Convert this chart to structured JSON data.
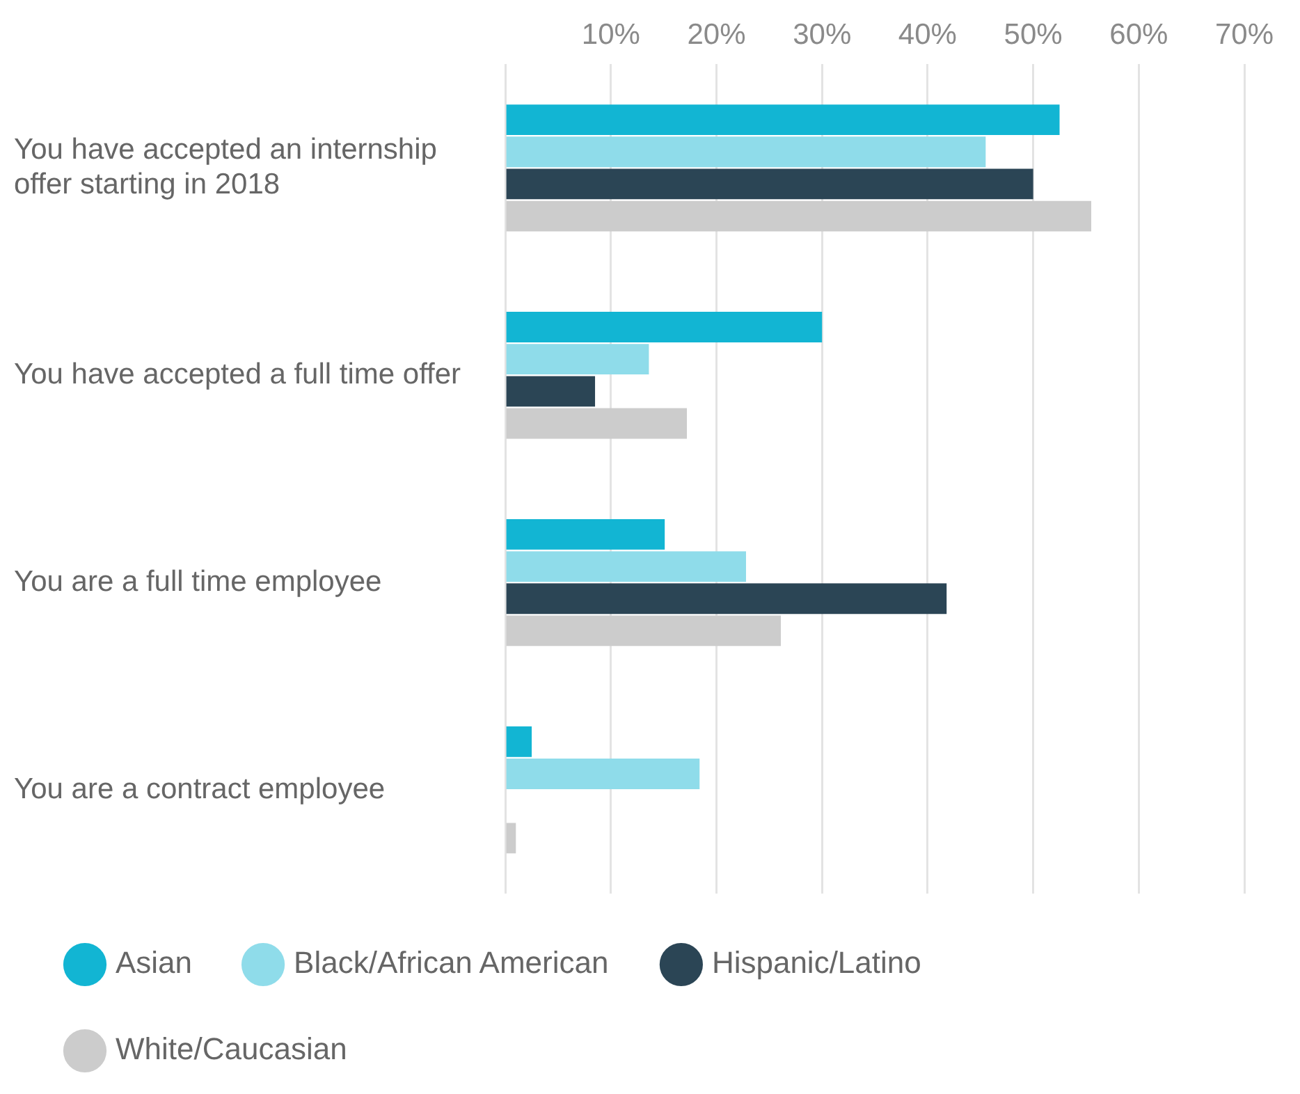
{
  "chart_data": {
    "type": "bar",
    "orientation": "horizontal",
    "categories": [
      "You have accepted an internship offer starting in 2018",
      "You have accepted a full time offer",
      "You are a full time employee",
      "You are a contract employee"
    ],
    "series": [
      {
        "name": "Asian",
        "color": "#12b5d3",
        "values": [
          52.5,
          30,
          15.1,
          2.5
        ]
      },
      {
        "name": "Black/African American",
        "color": "#8fdcea",
        "values": [
          45.5,
          13.6,
          22.8,
          18.4
        ]
      },
      {
        "name": "Hispanic/Latino",
        "color": "#2b4555",
        "values": [
          50,
          8.5,
          41.8,
          null
        ]
      },
      {
        "name": "White/Caucasian",
        "color": "#cccccc",
        "values": [
          55.5,
          17.2,
          26.1,
          1
        ]
      }
    ],
    "xlim": [
      0,
      70
    ],
    "xticks": [
      {
        "value": 0,
        "label": null
      },
      {
        "value": 10,
        "label": "10%"
      },
      {
        "value": 20,
        "label": "20%"
      },
      {
        "value": 30,
        "label": "30%"
      },
      {
        "value": 40,
        "label": "40%"
      },
      {
        "value": 50,
        "label": "50%"
      },
      {
        "value": 60,
        "label": "60%"
      },
      {
        "value": 70,
        "label": "70%"
      }
    ],
    "grid": "x",
    "legend": "bottom"
  }
}
